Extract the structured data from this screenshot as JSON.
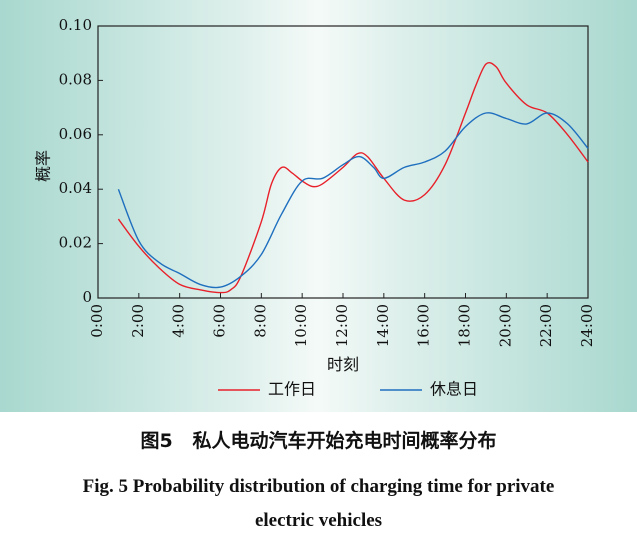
{
  "caption": {
    "cn": "图5   私人电动汽车开始充电时间概率分布",
    "en_line1": "Fig. 5    Probability distribution of charging time for private",
    "en_line2": "electric vehicles"
  },
  "chart_data": {
    "type": "line",
    "xlabel": "时刻",
    "ylabel": "概率",
    "xlim": [
      0,
      24
    ],
    "ylim": [
      0,
      0.1
    ],
    "x_ticks": [
      "0:00",
      "2:00",
      "4:00",
      "6:00",
      "8:00",
      "10:00",
      "12:00",
      "14:00",
      "16:00",
      "18:00",
      "20:00",
      "22:00",
      "24:00"
    ],
    "y_ticks": [
      "0",
      "0.02",
      "0.04",
      "0.06",
      "0.08",
      "0.10"
    ],
    "legend_position": "bottom",
    "series": [
      {
        "name": "工作日",
        "color": "#e8202a",
        "x": [
          1,
          2,
          3,
          4,
          5,
          6,
          6.5,
          7,
          8,
          8.5,
          9,
          9.5,
          10,
          10.5,
          11,
          12,
          12.7,
          13.2,
          14,
          15,
          16,
          17,
          18,
          18.5,
          19,
          19.5,
          20,
          21,
          22,
          23,
          24
        ],
        "y": [
          0.029,
          0.019,
          0.011,
          0.005,
          0.003,
          0.002,
          0.003,
          0.008,
          0.028,
          0.042,
          0.048,
          0.046,
          0.043,
          0.041,
          0.042,
          0.048,
          0.053,
          0.052,
          0.044,
          0.036,
          0.038,
          0.049,
          0.068,
          0.078,
          0.086,
          0.085,
          0.079,
          0.071,
          0.068,
          0.06,
          0.05
        ]
      },
      {
        "name": "休息日",
        "color": "#1f6fbf",
        "x": [
          1,
          2,
          3,
          4,
          5,
          6,
          7,
          8,
          9,
          10,
          11,
          12,
          12.8,
          13.5,
          14,
          15,
          16,
          17,
          18,
          19,
          20,
          21,
          22,
          23,
          24
        ],
        "y": [
          0.04,
          0.021,
          0.013,
          0.009,
          0.005,
          0.004,
          0.008,
          0.016,
          0.031,
          0.043,
          0.044,
          0.049,
          0.052,
          0.048,
          0.044,
          0.048,
          0.05,
          0.054,
          0.063,
          0.068,
          0.066,
          0.064,
          0.068,
          0.064,
          0.055
        ]
      }
    ]
  }
}
